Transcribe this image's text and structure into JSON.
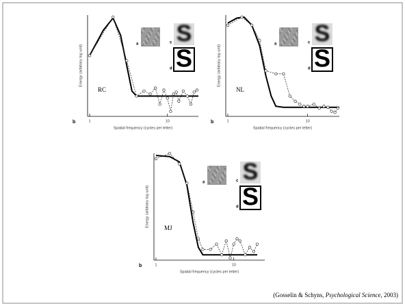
{
  "chart_data": [
    {
      "type": "line",
      "annotation": "RC",
      "panel_label": "b",
      "inset_labels": [
        "a",
        "c",
        "d"
      ],
      "stimulus": "S",
      "ylabel": "Energy (arbitrary log unit)",
      "xlabel": "Spatial frequency (cycles per letter)",
      "xscale": "log",
      "xlim": [
        1,
        25
      ],
      "ylim": [
        0,
        1
      ],
      "xticks": [
        1,
        10
      ],
      "series": [
        {
          "color": "#000000",
          "line_style": "solid",
          "markers": false,
          "x": [
            1,
            1.5,
            2,
            2.5,
            3,
            3.5,
            4,
            5,
            7,
            10,
            15,
            20,
            25
          ],
          "values": [
            0.6,
            0.85,
            0.97,
            0.8,
            0.5,
            0.25,
            0.2,
            0.2,
            0.2,
            0.2,
            0.2,
            0.2,
            0.2
          ]
        },
        {
          "color": "#333333",
          "line_style": "dashed",
          "markers": true,
          "x": [
            1,
            2,
            3,
            4,
            5,
            6,
            7,
            8,
            9,
            10,
            11,
            12,
            13,
            14,
            16,
            18,
            20,
            22,
            24
          ],
          "values": [
            0.6,
            0.98,
            0.55,
            0.2,
            0.25,
            0.22,
            0.28,
            0.12,
            0.26,
            0.18,
            0.05,
            0.22,
            0.24,
            0.15,
            0.25,
            0.2,
            0.12,
            0.24,
            0.26
          ]
        }
      ]
    },
    {
      "type": "line",
      "annotation": "NL",
      "panel_label": "b",
      "inset_labels": [
        "a",
        "c",
        "d"
      ],
      "stimulus": "S",
      "ylabel": "Energy (arbitrary log unit)",
      "xlabel": "Spatial frequency (cycles per letter)",
      "xscale": "log",
      "xlim": [
        1,
        25
      ],
      "ylim": [
        0,
        1
      ],
      "xticks": [
        1,
        10
      ],
      "series": [
        {
          "color": "#000000",
          "line_style": "solid",
          "markers": false,
          "x": [
            1,
            1.3,
            1.6,
            2,
            2.5,
            3,
            3.5,
            4,
            5,
            7,
            10,
            15,
            20,
            25
          ],
          "values": [
            0.92,
            0.97,
            0.98,
            0.9,
            0.7,
            0.4,
            0.2,
            0.1,
            0.09,
            0.09,
            0.09,
            0.09,
            0.09,
            0.09
          ]
        },
        {
          "color": "#333333",
          "line_style": "dashed",
          "markers": true,
          "x": [
            1,
            1.5,
            2,
            2.5,
            3,
            4,
            5,
            6,
            7,
            8,
            9,
            10,
            12,
            14,
            16,
            18,
            20,
            22,
            24
          ],
          "values": [
            0.9,
            0.98,
            0.9,
            0.75,
            0.45,
            0.42,
            0.42,
            0.2,
            0.15,
            0.12,
            0.1,
            0.1,
            0.12,
            0.08,
            0.1,
            0.09,
            0.05,
            0.04,
            0.08
          ]
        }
      ]
    },
    {
      "type": "line",
      "annotation": "MJ",
      "panel_label": "b",
      "inset_labels": [
        "a",
        "c",
        "d"
      ],
      "stimulus": "S",
      "ylabel": "Energy (arbitrary log unit)",
      "xlabel": "Spatial frequency (cycles per letter)",
      "xscale": "log",
      "xlim": [
        1,
        25
      ],
      "ylim": [
        0,
        1
      ],
      "xticks": [
        1,
        10
      ],
      "series": [
        {
          "color": "#000000",
          "line_style": "solid",
          "markers": false,
          "x": [
            1,
            1.5,
            2,
            2.5,
            3,
            3.5,
            4,
            5,
            7,
            10,
            15,
            20
          ],
          "values": [
            0.98,
            0.97,
            0.92,
            0.7,
            0.35,
            0.12,
            0.05,
            0.05,
            0.05,
            0.05,
            0.05,
            0.05
          ]
        },
        {
          "color": "#333333",
          "line_style": "dashed",
          "markers": true,
          "x": [
            1,
            1.5,
            2,
            2.5,
            3,
            3.5,
            4,
            5,
            6,
            7,
            8,
            9,
            10,
            11,
            12,
            14,
            16,
            18,
            20
          ],
          "values": [
            0.95,
            1.0,
            0.9,
            0.72,
            0.45,
            0.2,
            0.1,
            0.1,
            0.15,
            0.05,
            0.18,
            0.02,
            0.15,
            0.2,
            0.18,
            0.05,
            0.12,
            0.08,
            0.15
          ]
        }
      ]
    }
  ],
  "citation": {
    "before": "(Gosselin & Schyns, ",
    "journal": "Psychological Science",
    "after": ", 2003)"
  }
}
